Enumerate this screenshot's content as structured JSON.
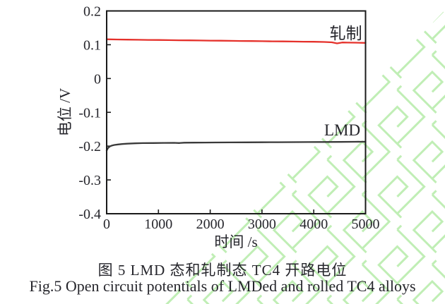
{
  "captions": {
    "zh": "图 5  LMD 态和轧制态 TC4 开路电位",
    "en": "Fig.5  Open circuit potentials of LMDed and rolled TC4 alloys"
  },
  "colors": {
    "axis": "#1a1a1a",
    "text": "#26262c",
    "rolled": "#e5312b",
    "lmd": "#3a3a3a",
    "watermark": "#c0eeb5"
  },
  "watermark": {
    "name": "journal-fret-watermark",
    "color": "#c0eeb5"
  },
  "chart_data": {
    "type": "line",
    "title": "",
    "xlabel": "时间 /s",
    "ylabel": "电位 /V",
    "xlim": [
      0,
      5000
    ],
    "ylim": [
      -0.4,
      0.2
    ],
    "grid": false,
    "legend_position": "inline-annotations",
    "x_ticks": [
      {
        "v": 0,
        "label": "0"
      },
      {
        "v": 1000,
        "label": "1000"
      },
      {
        "v": 2000,
        "label": "2000"
      },
      {
        "v": 3000,
        "label": "3000"
      },
      {
        "v": 4000,
        "label": "4000"
      },
      {
        "v": 5000,
        "label": "5000"
      }
    ],
    "y_ticks": [
      {
        "v": 0.2,
        "label": "0.2"
      },
      {
        "v": 0.1,
        "label": "0.1"
      },
      {
        "v": 0,
        "label": "0"
      },
      {
        "v": -0.1,
        "label": "-0.1"
      },
      {
        "v": -0.2,
        "label": "-0.2"
      },
      {
        "v": -0.3,
        "label": "-0.3"
      },
      {
        "v": -0.4,
        "label": "-0.4"
      }
    ],
    "series": [
      {
        "name": "轧制",
        "key": "rolled",
        "color_key": "rolled",
        "x": [
          0,
          200,
          400,
          600,
          800,
          1000,
          1200,
          1400,
          1600,
          1800,
          2000,
          2200,
          2400,
          2600,
          2800,
          3000,
          3200,
          3400,
          3600,
          3800,
          4000,
          4200,
          4350,
          4450,
          4550,
          4650,
          4800,
          5000
        ],
        "y": [
          0.116,
          0.1155,
          0.115,
          0.1147,
          0.1143,
          0.114,
          0.1137,
          0.1132,
          0.113,
          0.1126,
          0.1122,
          0.1119,
          0.1115,
          0.1112,
          0.1108,
          0.1105,
          0.1101,
          0.1098,
          0.1094,
          0.1091,
          0.1088,
          0.1082,
          0.1072,
          0.104,
          0.1068,
          0.1062,
          0.106,
          0.1055
        ]
      },
      {
        "name": "LMD",
        "key": "lmd",
        "color_key": "lmd",
        "x": [
          0,
          25,
          60,
          100,
          150,
          220,
          300,
          400,
          550,
          700,
          900,
          1100,
          1300,
          1400,
          1500,
          1700,
          1900,
          2100,
          2400,
          2700,
          3000,
          3300,
          3600,
          3900,
          4200,
          4500,
          4800,
          5000
        ],
        "y": [
          -0.213,
          -0.206,
          -0.201,
          -0.1985,
          -0.1965,
          -0.195,
          -0.1938,
          -0.1927,
          -0.1918,
          -0.1912,
          -0.1908,
          -0.1905,
          -0.1903,
          -0.1908,
          -0.1898,
          -0.1896,
          -0.1894,
          -0.1892,
          -0.189,
          -0.1888,
          -0.1886,
          -0.1884,
          -0.1882,
          -0.188,
          -0.1878,
          -0.1876,
          -0.1872,
          -0.187
        ]
      }
    ],
    "annotations": [
      {
        "text": "轧制",
        "x": 4620,
        "y": 0.134,
        "series": "rolled"
      },
      {
        "text": "LMD",
        "x": 4550,
        "y": -0.152,
        "series": "lmd"
      }
    ]
  }
}
